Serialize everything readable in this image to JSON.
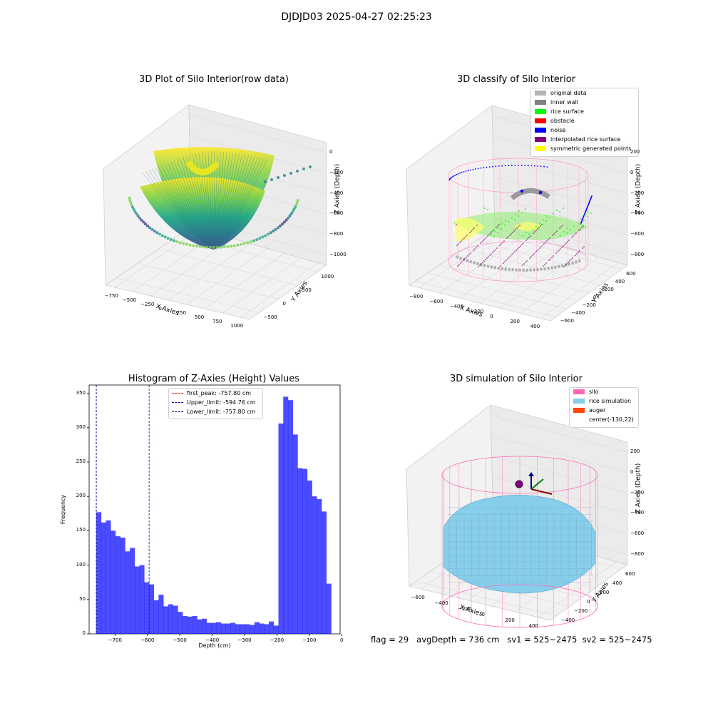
{
  "suptitle": "DJDJD03 2025-04-27 02:25:23",
  "footer": {
    "flag": "flag = 29",
    "avg_depth": "avgDepth = 736 cm",
    "sv1": "sv1 = 525~2475",
    "sv2": "sv2 = 525~2475"
  },
  "colors": {
    "hist_bar": "#0000ff",
    "first_peak": "#ff0000",
    "limits": "#00008b",
    "silo": "#ff69b4",
    "rice_sim": "#87ceeb",
    "auger": "#ff4500"
  },
  "chart_data": [
    {
      "type": "scatter3d",
      "title": "3D Plot of Silo Interior(row data)",
      "xlabel": "X Axies",
      "ylabel": "Y Axies",
      "zlabel": "Z Axies (Depth)",
      "x_ticks": [
        "−750",
        "−500",
        "−250",
        "0",
        "250",
        "500",
        "750",
        "1000"
      ],
      "y_ticks": [
        "−500",
        "0",
        "500",
        "1000"
      ],
      "z_ticks": [
        "0",
        "−200",
        "−400",
        "−600",
        "−800",
        "−1000"
      ],
      "colormap": "viridis"
    },
    {
      "type": "scatter3d",
      "title": "3D classify of Silo Interior",
      "xlabel": "X Axies",
      "ylabel": "Y Axies",
      "zlabel": "Z Axies (Depth)",
      "x_ticks": [
        "−800",
        "−600",
        "−400",
        "−200",
        "0",
        "200",
        "400"
      ],
      "y_ticks": [
        "−600",
        "−400",
        "−200",
        "0",
        "200",
        "400",
        "600"
      ],
      "z_ticks": [
        "200",
        "0",
        "−200",
        "−400",
        "−600",
        "−800"
      ],
      "legend": [
        {
          "label": "original data",
          "color": "#b4b4b4"
        },
        {
          "label": "inner wall",
          "color": "#808080"
        },
        {
          "label": "rice surface",
          "color": "#00ff00"
        },
        {
          "label": "obstacle",
          "color": "#ff0000"
        },
        {
          "label": "noise",
          "color": "#0000ff"
        },
        {
          "label": "interpolated rice surface",
          "color": "#800080"
        },
        {
          "label": "symmetric generated points",
          "color": "#ffff00"
        }
      ],
      "legend_loc": "upper right"
    },
    {
      "type": "bar",
      "title": "Histogram of Z-Axies (Height) Values",
      "xlabel": "Depth (cm)",
      "ylabel": "Frequency",
      "xlim": [
        -780,
        -5
      ],
      "ylim": [
        0,
        362
      ],
      "x_ticks": [
        -700,
        -600,
        -500,
        -400,
        -300,
        -200,
        -100,
        0
      ],
      "y_ticks": [
        0,
        50,
        100,
        150,
        200,
        250,
        300,
        350
      ],
      "bin_start": -757.8,
      "bin_width": 14.8,
      "values": [
        177,
        162,
        165,
        150,
        142,
        140,
        120,
        125,
        98,
        100,
        75,
        72,
        49,
        57,
        40,
        43,
        41,
        32,
        26,
        25,
        26,
        21,
        22,
        16,
        16,
        17,
        15,
        15,
        16,
        14,
        14,
        14,
        13,
        17,
        15,
        14,
        18,
        12,
        306,
        345,
        340,
        290,
        241,
        240,
        223,
        200,
        196,
        178,
        73
      ],
      "lines": [
        {
          "label": "first_peak: -757.80 cm",
          "x": -757.8,
          "color": "#ff0000"
        },
        {
          "label": "Upper_limit: -594.76 cm",
          "x": -594.76,
          "color": "#00008b"
        },
        {
          "label": "Lower_limit: -757.80 cm",
          "x": -757.8,
          "color": "#00008b"
        }
      ],
      "legend_loc": "upper center"
    },
    {
      "type": "surface3d",
      "title": "3D simulation of Silo Interior",
      "xlabel": "X Axies",
      "ylabel": "Y Axies",
      "zlabel": "Z Axies (Depth)",
      "x_ticks": [
        "−600",
        "−400",
        "−200",
        "0",
        "200",
        "400"
      ],
      "y_ticks": [
        "−400",
        "−200",
        "0",
        "200",
        "400",
        "600"
      ],
      "z_ticks": [
        "200",
        "0",
        "−200",
        "−400",
        "−600",
        "−800"
      ],
      "legend": [
        {
          "label": "silo",
          "color": "#ff69b4"
        },
        {
          "label": "rice simulation",
          "color": "#87ceeb"
        },
        {
          "label": "auger",
          "color": "#ff4500"
        },
        {
          "label": "center(-130,22)",
          "color": ""
        }
      ],
      "legend_loc": "upper right"
    }
  ]
}
